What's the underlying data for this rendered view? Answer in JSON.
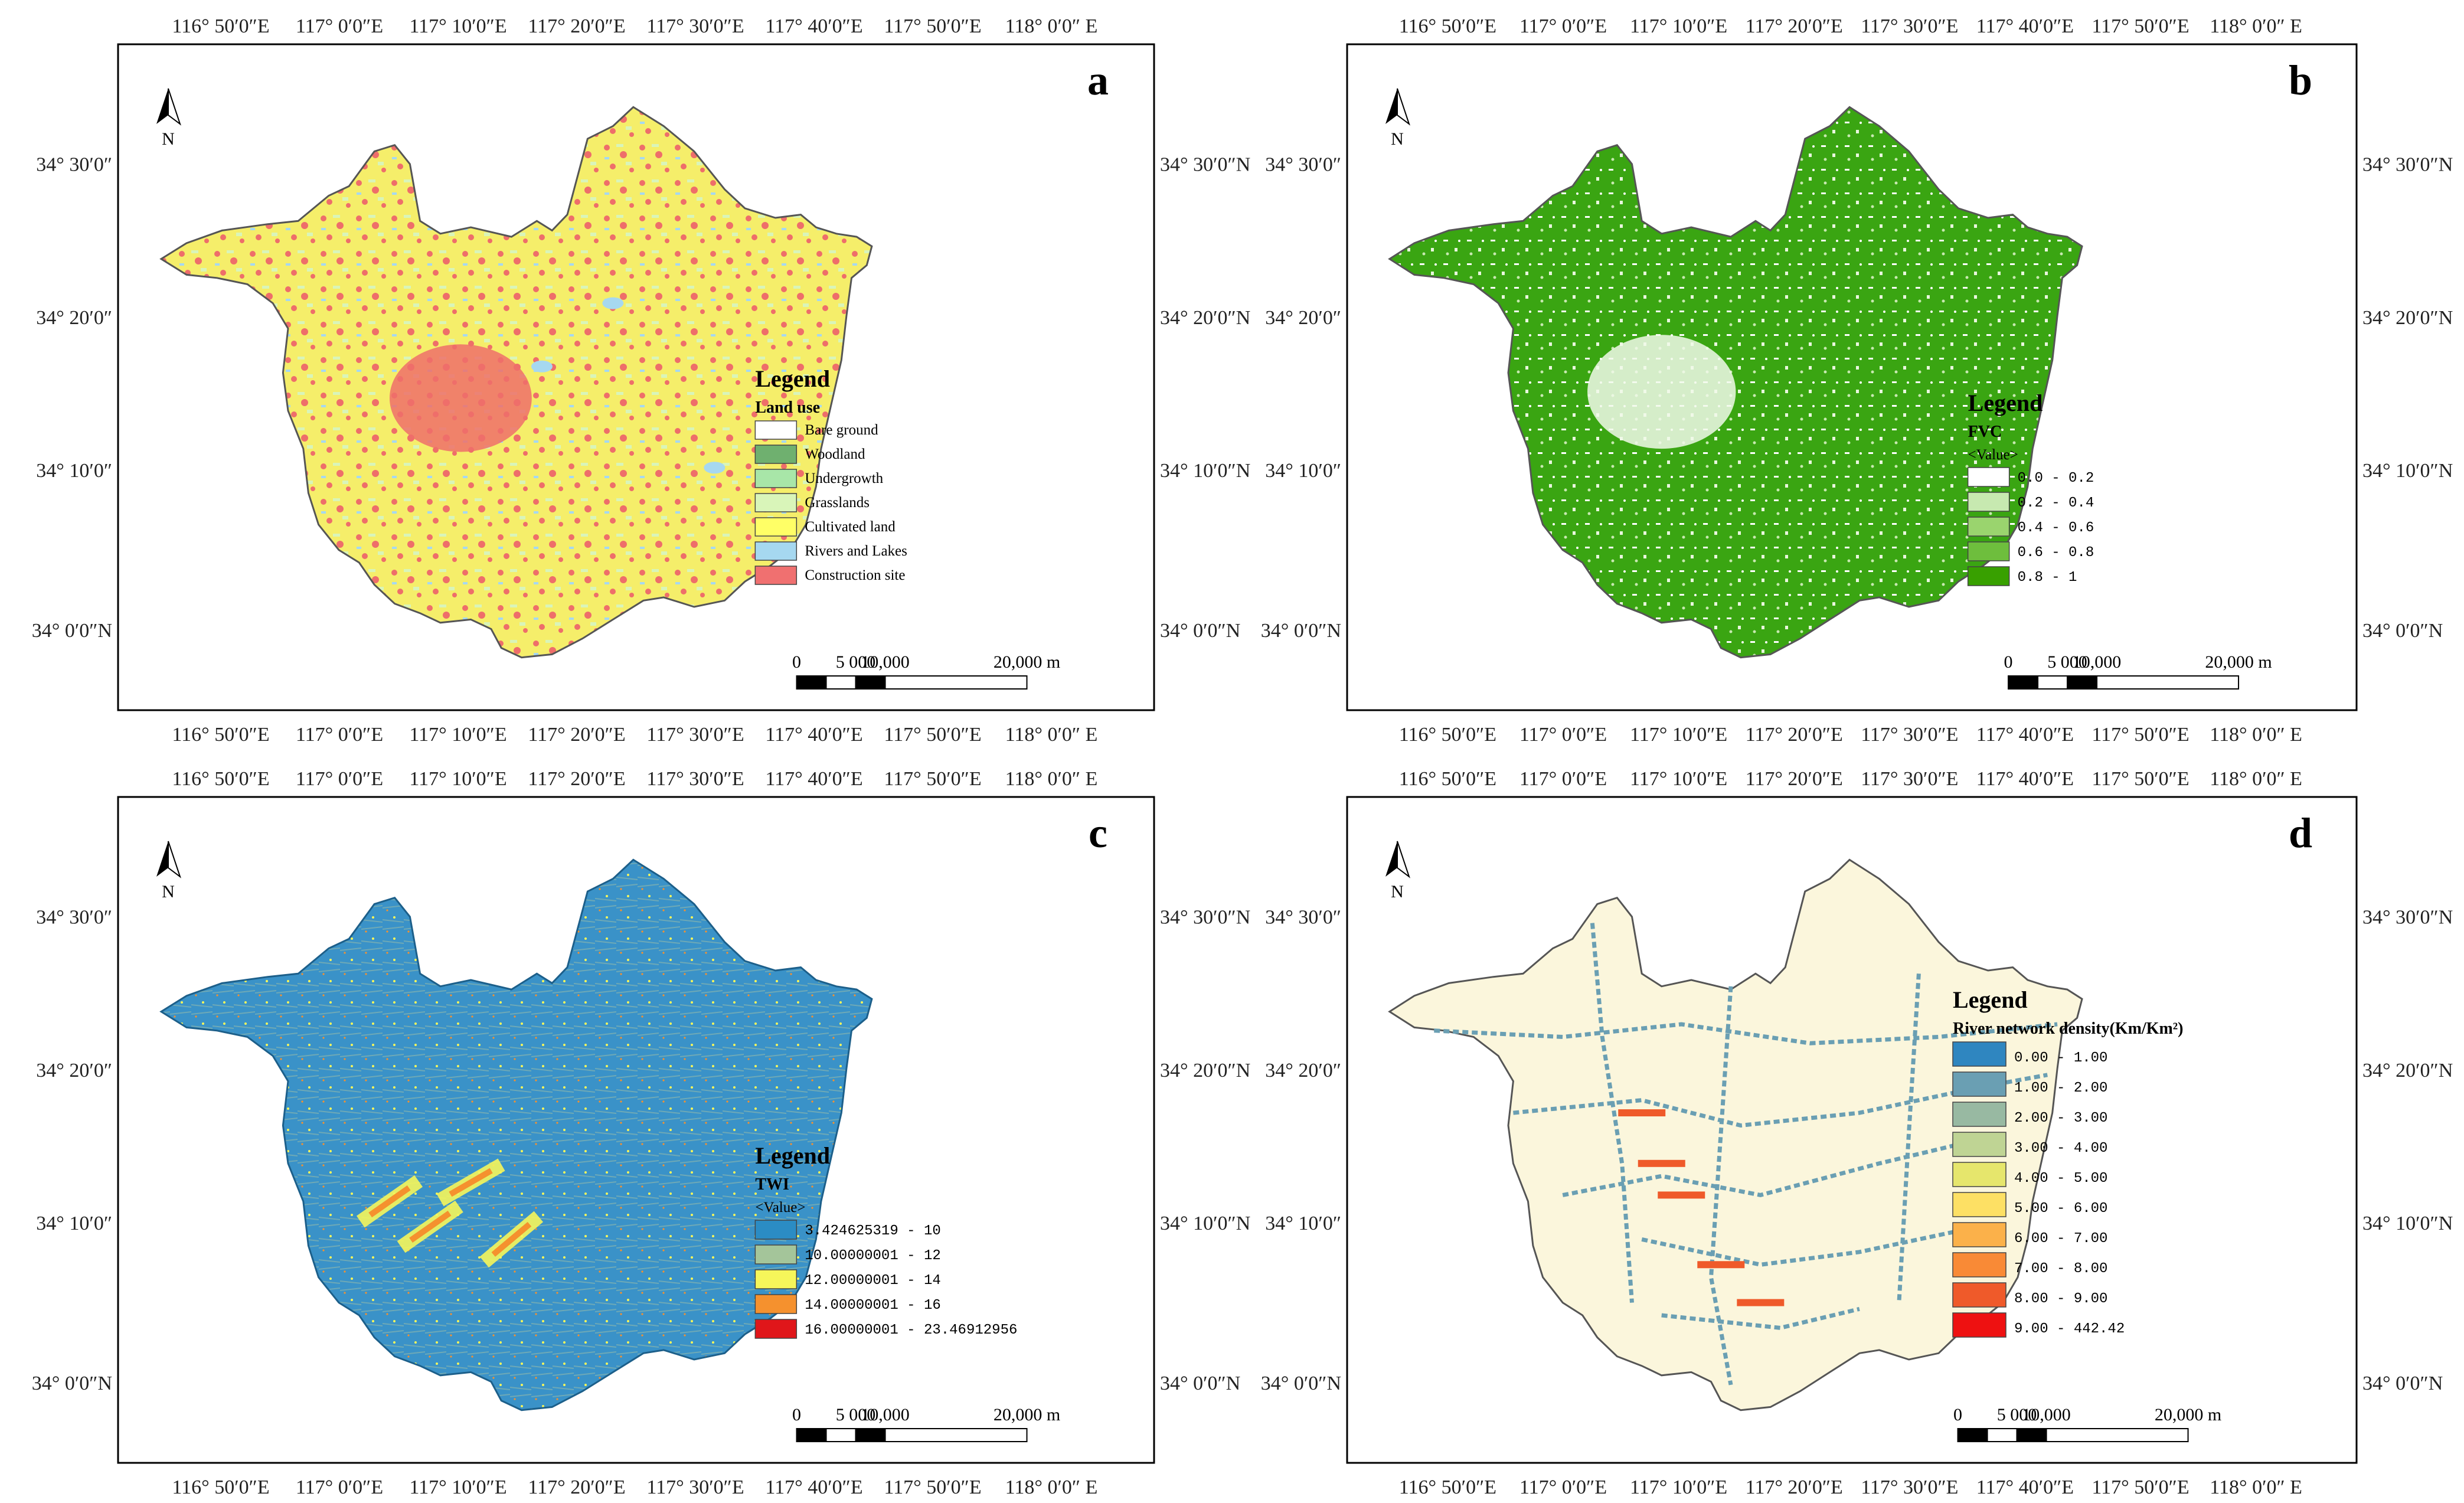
{
  "frame_labels": {
    "top": [
      "116° 50′0″E",
      "117° 0′0″E",
      "117° 10′0″E",
      "117° 20′0″E",
      "117° 30′0″E",
      "117° 40′0″E",
      "117° 50′0″E",
      "118° 0′0″ E"
    ],
    "left": [
      "34° 30′0″",
      "34° 20′0″",
      "34° 10′0″",
      "34° 0′0″N"
    ],
    "right": [
      "34° 30′0″N",
      "34° 20′0″N",
      "34° 10′0″N",
      "34° 0′0″N"
    ]
  },
  "north_arrow": {
    "label": "N"
  },
  "scale_bar": {
    "labels": [
      "0",
      "5 000",
      "10,000",
      "20,000 m"
    ]
  },
  "legend_title": "Legend",
  "panels": [
    {
      "id": "a",
      "letter": "a",
      "legend_sub": "Land use",
      "legend_sub2": "",
      "base_color": "#f5ee6a",
      "legend_items": [
        {
          "label": "Bare ground",
          "color": "#ffffff"
        },
        {
          "label": "Woodland",
          "color": "#6fb06f"
        },
        {
          "label": "Undergrowth",
          "color": "#a8e6a8"
        },
        {
          "label": "Grasslands",
          "color": "#d9f5b9"
        },
        {
          "label": "Cultivated land",
          "color": "#ffff66"
        },
        {
          "label": "Rivers and Lakes",
          "color": "#a6d8f0"
        },
        {
          "label": "Construction site",
          "color": "#f07070"
        }
      ]
    },
    {
      "id": "b",
      "letter": "b",
      "legend_sub": "FVC",
      "legend_sub2": "<Value>",
      "base_color": "#3aa512",
      "legend_items": [
        {
          "label": "0.0 - 0.2",
          "color": "#ffffff"
        },
        {
          "label": "0.2 - 0.4",
          "color": "#c7e9b0"
        },
        {
          "label": "0.4 - 0.6",
          "color": "#9ad46e"
        },
        {
          "label": "0.6 - 0.8",
          "color": "#6ebe3d"
        },
        {
          "label": "0.8 - 1",
          "color": "#38a000"
        }
      ]
    },
    {
      "id": "c",
      "letter": "c",
      "legend_sub": "TWI",
      "legend_sub2": "<Value>",
      "base_color": "#3a92c8",
      "legend_items": [
        {
          "label": "3.424625319 - 10",
          "color": "#2b8cc4"
        },
        {
          "label": "10.00000001 - 12",
          "color": "#a4c59a"
        },
        {
          "label": "12.00000001 - 14",
          "color": "#f6f65a"
        },
        {
          "label": "14.00000001 - 16",
          "color": "#f5912e"
        },
        {
          "label": "16.00000001 - 23.46912956",
          "color": "#e0161a"
        }
      ]
    },
    {
      "id": "d",
      "letter": "d",
      "legend_sub": "River network density(Km/Km²)",
      "legend_sub2": "",
      "base_color": "#fbf6dc",
      "legend_items": [
        {
          "label": "0.00 - 1.00",
          "color": "#2f86c0"
        },
        {
          "label": "1.00 - 2.00",
          "color": "#6a9fb3"
        },
        {
          "label": "2.00 - 3.00",
          "color": "#98b9a2"
        },
        {
          "label": "3.00 - 4.00",
          "color": "#bfd494"
        },
        {
          "label": "4.00 - 5.00",
          "color": "#e6e66c"
        },
        {
          "label": "5.00 - 6.00",
          "color": "#fde064"
        },
        {
          "label": "6.00 - 7.00",
          "color": "#fbb14a"
        },
        {
          "label": "7.00 - 8.00",
          "color": "#f98a36"
        },
        {
          "label": "8.00 - 9.00",
          "color": "#ef5a2a"
        },
        {
          "label": "9.00 - 442.42",
          "color": "#ee1111"
        }
      ]
    }
  ]
}
